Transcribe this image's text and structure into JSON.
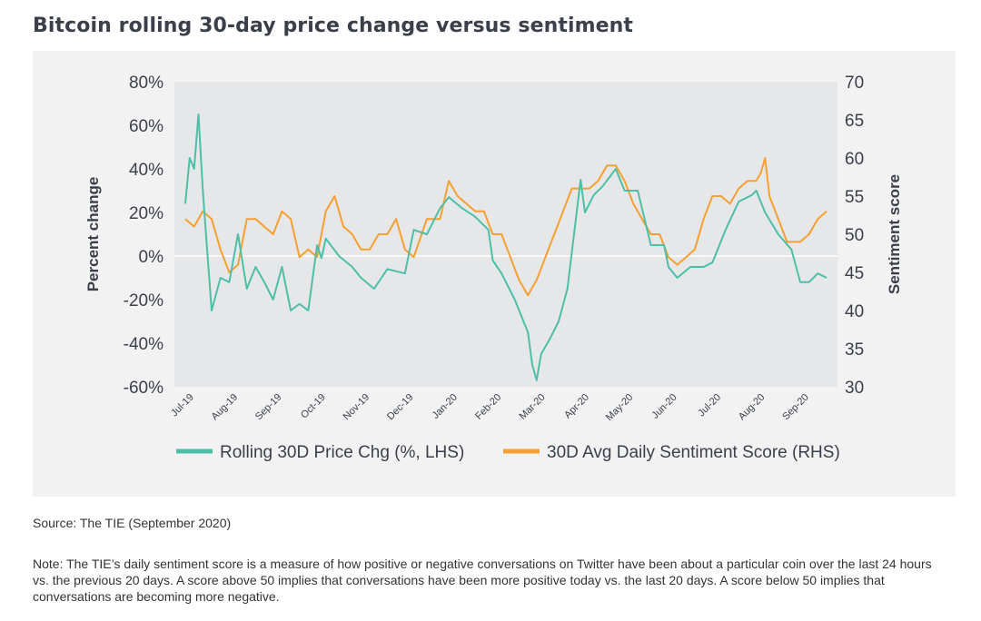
{
  "title": "Bitcoin rolling 30-day price change versus sentiment",
  "source": "Source: The TIE (September 2020)",
  "note": "Note: The TIE’s daily sentiment score is a measure of how positive or negative conversations on Twitter have been about a particular coin over the last 24 hours vs. the previous 20 days. A score above 50 implies that conversations have been more positive today vs. the last 20 days. A score below 50 implies that conversations are becoming more negative.",
  "colors": {
    "price": "#4dbfa8",
    "sentiment": "#f5a030",
    "plot_bg": "#e6e7e8",
    "panel_bg": "#f2f2f2",
    "zero_line": "#ffffff"
  },
  "chart_data": {
    "type": "line",
    "title": "Bitcoin rolling 30-day price change versus sentiment",
    "ylabel": "Percent change",
    "y2label": "Sentiment score",
    "ylim": [
      -60,
      80
    ],
    "y2lim": [
      30,
      70
    ],
    "yticks": [
      "80%",
      "60%",
      "40%",
      "20%",
      "0%",
      "-20%",
      "-40%",
      "-60%"
    ],
    "y2ticks": [
      "70",
      "65",
      "60",
      "55",
      "50",
      "45",
      "40",
      "35",
      "30"
    ],
    "xticks": [
      "Jul-19",
      "Aug-19",
      "Sep-19",
      "Oct-19",
      "Nov-19",
      "Dec-19",
      "Jan-20",
      "Feb-20",
      "Mar-20",
      "Apr-20",
      "May-20",
      "Jun-20",
      "Jul-20",
      "Aug-20",
      "Sep-20"
    ],
    "legend_position": "bottom",
    "series": [
      {
        "name": "Rolling 30D Price Chg (%, LHS)",
        "axis": "left",
        "x": [
          0,
          0.1,
          0.2,
          0.3,
          0.4,
          0.5,
          0.6,
          0.8,
          1.0,
          1.2,
          1.4,
          1.6,
          1.8,
          2.0,
          2.2,
          2.4,
          2.6,
          2.8,
          3.0,
          3.1,
          3.2,
          3.5,
          3.8,
          4.0,
          4.3,
          4.6,
          5.0,
          5.2,
          5.5,
          5.8,
          6.0,
          6.3,
          6.6,
          6.9,
          7.0,
          7.2,
          7.5,
          7.8,
          7.9,
          8.0,
          8.1,
          8.3,
          8.5,
          8.7,
          9.0,
          9.1,
          9.3,
          9.5,
          9.8,
          10.0,
          10.3,
          10.6,
          10.9,
          11.0,
          11.2,
          11.5,
          11.8,
          12.0,
          12.3,
          12.6,
          12.9,
          13.0,
          13.2,
          13.5,
          13.8,
          14.0,
          14.2,
          14.4,
          14.6
        ],
        "y": [
          24,
          45,
          40,
          65,
          30,
          2,
          -25,
          -10,
          -12,
          10,
          -15,
          -5,
          -12,
          -20,
          -5,
          -25,
          -22,
          -25,
          5,
          -1,
          8,
          0,
          -5,
          -10,
          -15,
          -6,
          -8,
          12,
          10,
          22,
          27,
          22,
          18,
          12,
          -2,
          -8,
          -20,
          -35,
          -50,
          -57,
          -45,
          -38,
          -30,
          -15,
          35,
          20,
          28,
          32,
          40,
          30,
          30,
          5,
          5,
          -5,
          -10,
          -5,
          -5,
          -3,
          12,
          25,
          28,
          30,
          20,
          10,
          3,
          -12,
          -12,
          -8,
          -10
        ]
      },
      {
        "name": "30D Avg Daily Sentiment Score (RHS)",
        "axis": "right",
        "x": [
          0,
          0.2,
          0.4,
          0.6,
          0.8,
          1.0,
          1.2,
          1.4,
          1.6,
          1.8,
          2.0,
          2.2,
          2.4,
          2.6,
          2.8,
          3.0,
          3.2,
          3.4,
          3.6,
          3.8,
          4.0,
          4.2,
          4.4,
          4.6,
          4.8,
          5.0,
          5.2,
          5.5,
          5.8,
          6.0,
          6.2,
          6.4,
          6.6,
          6.8,
          7.0,
          7.2,
          7.4,
          7.6,
          7.8,
          8.0,
          8.2,
          8.4,
          8.6,
          8.8,
          9.0,
          9.2,
          9.4,
          9.6,
          9.8,
          10.0,
          10.2,
          10.4,
          10.6,
          10.8,
          11.0,
          11.2,
          11.4,
          11.6,
          11.8,
          12.0,
          12.2,
          12.4,
          12.6,
          12.8,
          13.0,
          13.1,
          13.2,
          13.3,
          13.5,
          13.7,
          14.0,
          14.2,
          14.4,
          14.6
        ],
        "y": [
          52,
          51,
          53,
          52,
          48,
          45,
          46,
          52,
          52,
          51,
          50,
          53,
          52,
          47,
          48,
          47,
          53,
          55,
          51,
          50,
          48,
          48,
          50,
          50,
          52,
          48,
          47,
          52,
          52,
          57,
          55,
          54,
          53,
          53,
          50,
          50,
          47,
          44,
          42,
          44,
          47,
          50,
          53,
          56,
          56,
          56,
          57,
          59,
          59,
          57,
          54,
          52,
          50,
          50,
          47,
          46,
          47,
          48,
          52,
          55,
          55,
          54,
          56,
          57,
          57,
          58,
          60,
          55,
          52,
          49,
          49,
          50,
          52,
          53
        ]
      }
    ]
  }
}
